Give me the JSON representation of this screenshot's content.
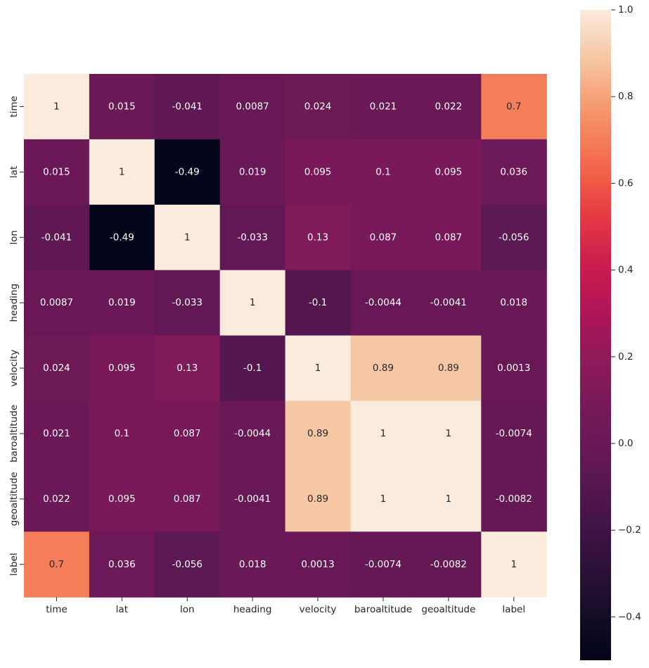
{
  "chart_data": {
    "type": "heatmap",
    "title": "",
    "xlabel": "",
    "ylabel": "",
    "x_categories": [
      "time",
      "lat",
      "lon",
      "heading",
      "velocity",
      "baroaltitude",
      "geoaltitude",
      "label"
    ],
    "y_categories": [
      "time",
      "lat",
      "lon",
      "heading",
      "velocity",
      "baroaltitude",
      "geoaltitude",
      "label"
    ],
    "values": [
      [
        1,
        0.015,
        -0.041,
        0.0087,
        0.024,
        0.021,
        0.022,
        0.7
      ],
      [
        0.015,
        1,
        -0.49,
        0.019,
        0.095,
        0.1,
        0.095,
        0.036
      ],
      [
        -0.041,
        -0.49,
        1,
        -0.033,
        0.13,
        0.087,
        0.087,
        -0.056
      ],
      [
        0.0087,
        0.019,
        -0.033,
        1,
        -0.1,
        -0.0044,
        -0.0041,
        0.018
      ],
      [
        0.024,
        0.095,
        0.13,
        -0.1,
        1,
        0.89,
        0.89,
        0.0013
      ],
      [
        0.021,
        0.1,
        0.087,
        -0.0044,
        0.89,
        1,
        1,
        -0.0074
      ],
      [
        0.022,
        0.095,
        0.087,
        -0.0041,
        0.89,
        1,
        1,
        -0.0082
      ],
      [
        0.7,
        0.036,
        -0.056,
        0.018,
        0.0013,
        -0.0074,
        -0.0082,
        1
      ]
    ],
    "annotations": [
      [
        "1",
        "0.015",
        "-0.041",
        "0.0087",
        "0.024",
        "0.021",
        "0.022",
        "0.7"
      ],
      [
        "0.015",
        "1",
        "-0.49",
        "0.019",
        "0.095",
        "0.1",
        "0.095",
        "0.036"
      ],
      [
        "-0.041",
        "-0.49",
        "1",
        "-0.033",
        "0.13",
        "0.087",
        "0.087",
        "-0.056"
      ],
      [
        "0.0087",
        "0.019",
        "-0.033",
        "1",
        "-0.1",
        "-0.0044",
        "-0.0041",
        "0.018"
      ],
      [
        "0.024",
        "0.095",
        "0.13",
        "-0.1",
        "1",
        "0.89",
        "0.89",
        "0.0013"
      ],
      [
        "0.021",
        "0.1",
        "0.087",
        "-0.0044",
        "0.89",
        "1",
        "1",
        "-0.0074"
      ],
      [
        "0.022",
        "0.095",
        "0.087",
        "-0.0041",
        "0.89",
        "1",
        "1",
        "-0.0082"
      ],
      [
        "0.7",
        "0.036",
        "-0.056",
        "0.018",
        "0.0013",
        "-0.0074",
        "-0.0082",
        "1"
      ]
    ],
    "colormap": "rocket",
    "vmin": -0.49,
    "vmax": 1.0,
    "colorbar": {
      "ticks": [
        1.0,
        0.8,
        0.6,
        0.4,
        0.2,
        0.0,
        -0.2,
        -0.4
      ],
      "tick_labels": [
        "1.0",
        "0.8",
        "0.6",
        "0.4",
        "0.2",
        "0.0",
        "−0.2",
        "−0.4"
      ],
      "position": "right"
    },
    "grid": false,
    "legend": "none"
  }
}
